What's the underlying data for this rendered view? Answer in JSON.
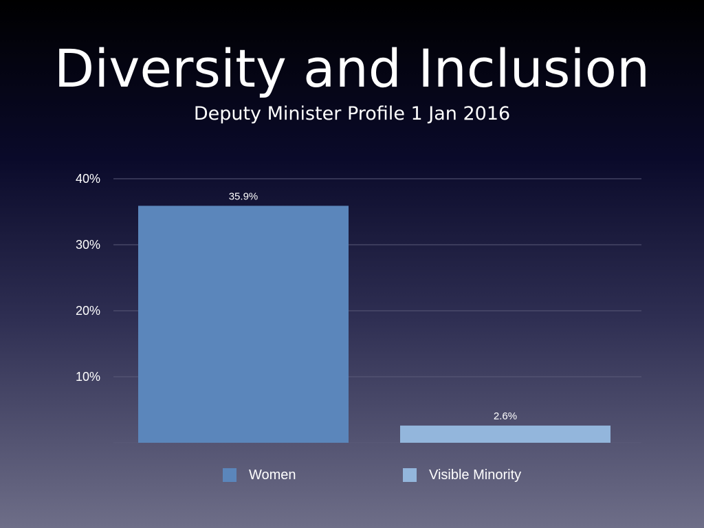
{
  "slide": {
    "title": "Diversity and Inclusion",
    "subtitle": "Deputy Minister Profile 1 Jan 2016"
  },
  "chart_data": {
    "type": "bar",
    "categories": [
      "Women",
      "Visible Minority"
    ],
    "values": [
      35.9,
      2.6
    ],
    "data_labels": [
      "35.9%",
      "2.6%"
    ],
    "ylim": [
      0,
      40
    ],
    "yticks": [
      10,
      20,
      30,
      40
    ],
    "ytick_labels": [
      "10%",
      "20%",
      "30%",
      "40%"
    ],
    "grid": true,
    "legend": {
      "placement": "bottom",
      "entries": [
        "Women",
        "Visible Minority"
      ]
    },
    "colors": [
      "#5b86bb",
      "#93b6dc"
    ],
    "grid_color": "#5a5a78"
  }
}
